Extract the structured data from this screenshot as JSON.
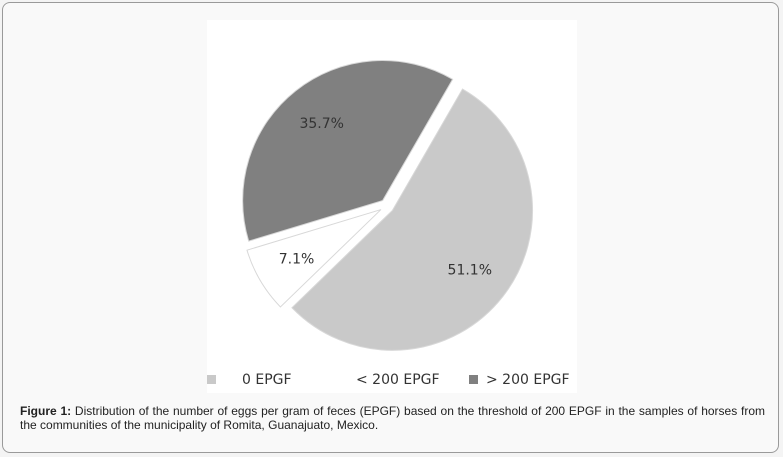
{
  "chart_data": {
    "type": "pie",
    "categories": [
      "0 EPGF",
      "< 200 EPGF",
      "> 200 EPGF"
    ],
    "values": [
      51.1,
      7.1,
      35.7
    ],
    "value_labels": [
      "51.1%",
      "7.1%",
      "35.7%"
    ],
    "colors": [
      "#c9c9c9",
      "#ffffff",
      "#808080"
    ],
    "legend": "bottom",
    "figure_label": "Figure 1:",
    "caption": "Distribution of the number of eggs per gram of feces (EPGF) based on the threshold of 200 EPGF in the samples of horses from the communities of the municipality of Romita, Guanajuato, Mexico."
  }
}
